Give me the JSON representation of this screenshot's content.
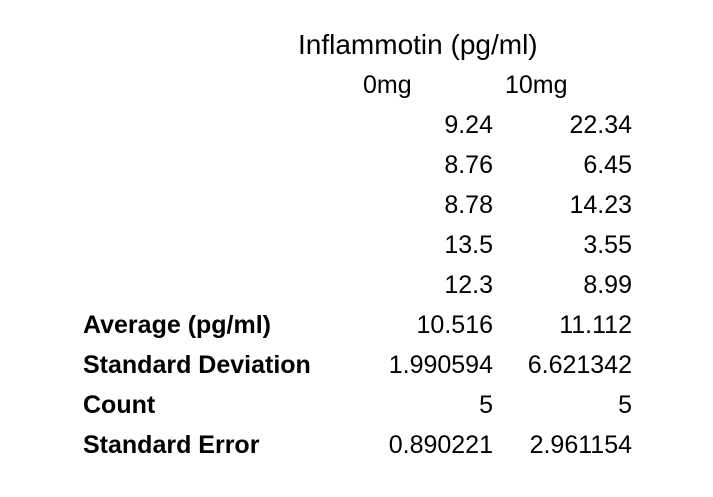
{
  "colors": {
    "background": "#ffffff",
    "text": "#000000"
  },
  "chart_data": {
    "type": "table",
    "title": "Inflammotin (pg/ml)",
    "columns": [
      "0mg",
      "10mg"
    ],
    "rows": [
      [
        "9.24",
        "22.34"
      ],
      [
        "8.76",
        "6.45"
      ],
      [
        "8.78",
        "14.23"
      ],
      [
        "13.5",
        "3.55"
      ],
      [
        "12.3",
        "8.99"
      ]
    ],
    "stats": [
      {
        "label": "Average (pg/ml)",
        "values": [
          "10.516",
          "11.112"
        ]
      },
      {
        "label": "Standard Deviation",
        "values": [
          "1.990594",
          "6.621342"
        ]
      },
      {
        "label": "Count",
        "values": [
          "5",
          "5"
        ]
      },
      {
        "label": "Standard Error",
        "values": [
          "0.890221",
          "2.961154"
        ]
      }
    ]
  }
}
